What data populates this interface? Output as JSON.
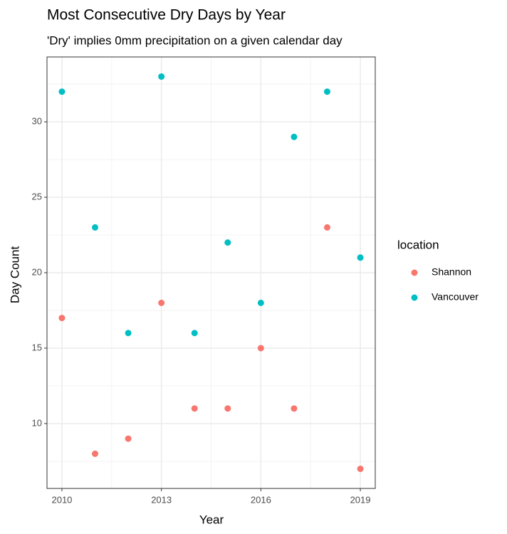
{
  "chart_data": {
    "type": "scatter",
    "title": "Most Consecutive Dry Days by Year",
    "subtitle": "'Dry' implies 0mm precipitation on a given calendar day",
    "x_label": "Year",
    "y_label": "Day Count",
    "legend_title": "location",
    "legend_position": "right",
    "grid": true,
    "x": [
      2010,
      2011,
      2012,
      2013,
      2014,
      2015,
      2016,
      2017,
      2018,
      2019
    ],
    "series": [
      {
        "name": "Shannon",
        "color": "#F8766D",
        "values": [
          17,
          8,
          9,
          18,
          11,
          11,
          15,
          11,
          23,
          7
        ]
      },
      {
        "name": "Vancouver",
        "color": "#00BFC4",
        "values": [
          32,
          23,
          16,
          33,
          16,
          22,
          18,
          29,
          32,
          21
        ]
      }
    ],
    "xlim": [
      2009.55,
      2019.45
    ],
    "xticks": [
      2010,
      2013,
      2016,
      2019
    ],
    "ylim": [
      5.7,
      34.3
    ],
    "yticks": [
      10,
      15,
      20,
      25,
      30
    ]
  }
}
